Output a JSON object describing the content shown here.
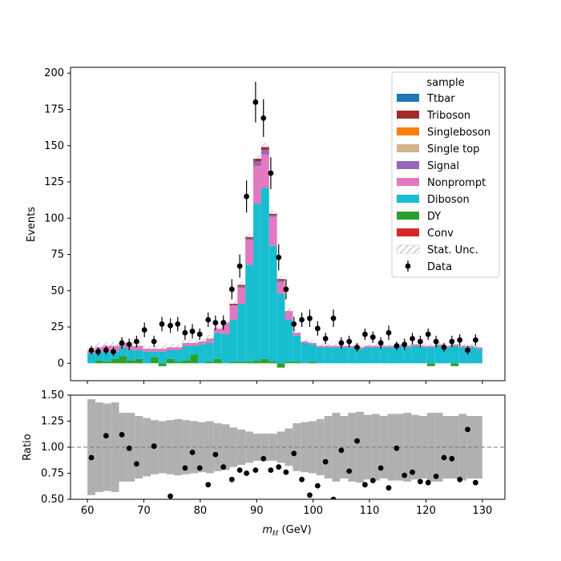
{
  "chart_data": [
    {
      "type": "bar",
      "stacked": true,
      "xlabel": "",
      "ylabel": "Events",
      "xlim": [
        57,
        134
      ],
      "ylim": [
        -12,
        204
      ],
      "yticks": [
        0,
        25,
        50,
        75,
        100,
        125,
        150,
        175,
        200
      ],
      "grid": false,
      "legend": {
        "title": "sample",
        "position": "top-right",
        "stat_label": "Stat. Unc.",
        "data_label": "Data"
      },
      "bin_low": 60,
      "bin_width": 1.4,
      "series": [
        {
          "name": "Conv",
          "color": "#d62728",
          "values": [
            0,
            0,
            0,
            0,
            0,
            0,
            0,
            0,
            0,
            0,
            0,
            0,
            0,
            0,
            0,
            0,
            0,
            0,
            0,
            0,
            0,
            0,
            0,
            0,
            0,
            0,
            0,
            0,
            0,
            0,
            0,
            0,
            0,
            0,
            0,
            0,
            0,
            0,
            0,
            0,
            0,
            0,
            0,
            0,
            0,
            0,
            0,
            0,
            0,
            0
          ]
        },
        {
          "name": "DY",
          "color": "#2ca02c",
          "values": [
            0,
            2,
            1,
            3,
            5,
            2,
            3,
            0,
            4,
            -2,
            3,
            1,
            2,
            6,
            0,
            1,
            3,
            0,
            1,
            1,
            1,
            2,
            3,
            1,
            -3,
            1,
            1,
            0,
            1,
            0,
            0,
            0,
            0,
            0,
            0,
            0,
            0,
            0,
            0,
            0,
            0,
            0,
            0,
            -2,
            0,
            0,
            -2,
            0,
            0,
            0
          ]
        },
        {
          "name": "Diboson",
          "color": "#17becf",
          "values": [
            7,
            6,
            7,
            5,
            6,
            7,
            6,
            8,
            4,
            8,
            6,
            8,
            10,
            6,
            13,
            13,
            18,
            20,
            29,
            40,
            67,
            108,
            118,
            80,
            48,
            29,
            18,
            14,
            12,
            11,
            11,
            11,
            11,
            11,
            10,
            11,
            11,
            11,
            11,
            12,
            11,
            12,
            11,
            11,
            12,
            11,
            12,
            11,
            11,
            10
          ]
        },
        {
          "name": "Nonprompt",
          "color": "#e377c2",
          "values": [
            2,
            3,
            4,
            4,
            3,
            3,
            3,
            2,
            2,
            2,
            2,
            2,
            2,
            2,
            2,
            3,
            3,
            8,
            10,
            11,
            17,
            26,
            23,
            20,
            8,
            6,
            2,
            1,
            1,
            1,
            1,
            1,
            1,
            1,
            1,
            1,
            1,
            1,
            1,
            1,
            1,
            1,
            1,
            1,
            1,
            1,
            1,
            1,
            1,
            1
          ]
        },
        {
          "name": "Signal",
          "color": "#9467bd",
          "values": [
            0,
            0,
            0,
            0,
            0,
            0,
            0,
            0,
            0,
            0,
            0,
            0,
            0,
            0,
            0,
            0,
            0,
            0,
            0,
            1,
            1,
            3,
            3,
            1,
            1,
            0,
            0,
            0,
            0,
            0,
            0,
            0,
            0,
            0,
            0,
            0,
            0,
            0,
            0,
            0,
            0,
            0,
            0,
            0,
            0,
            0,
            0,
            0,
            0,
            0
          ]
        },
        {
          "name": "Single top",
          "color": "#d2b48c",
          "values": [
            0,
            0,
            0,
            0,
            0,
            0,
            0,
            0,
            0,
            0,
            0,
            0,
            0,
            0,
            0,
            0,
            0,
            0,
            0,
            0,
            0,
            0,
            0,
            0,
            0,
            0,
            0,
            0,
            0,
            0,
            0,
            0,
            0,
            0,
            0,
            0,
            0,
            0,
            0,
            0,
            0,
            0,
            0,
            0,
            0,
            0,
            0,
            0,
            0,
            0
          ]
        },
        {
          "name": "Singleboson",
          "color": "#ff7f0e",
          "values": [
            0,
            0,
            0,
            0,
            0,
            0,
            0,
            0,
            0,
            0,
            0,
            0,
            0,
            0,
            0,
            0,
            0,
            0,
            0,
            0,
            0,
            0,
            0,
            0,
            0,
            0,
            0,
            0,
            0,
            0,
            0,
            0,
            0,
            0,
            0,
            0,
            0,
            0,
            0,
            0,
            0,
            0,
            0,
            0,
            0,
            0,
            0,
            0,
            0,
            0
          ]
        },
        {
          "name": "Triboson",
          "color": "#a52a2a",
          "values": [
            0,
            0,
            0,
            0,
            0,
            0,
            0,
            0,
            0,
            0,
            0,
            0,
            0,
            0,
            0,
            0,
            0,
            0,
            1,
            1,
            1,
            2,
            2,
            1,
            1,
            0,
            0,
            0,
            0,
            0,
            0,
            0,
            0,
            0,
            0,
            0,
            0,
            0,
            0,
            0,
            0,
            0,
            0,
            0,
            0,
            0,
            0,
            0,
            0,
            0
          ]
        },
        {
          "name": "Ttbar",
          "color": "#1f77b4",
          "values": [
            0,
            0,
            0,
            0,
            0,
            0,
            0,
            0,
            0,
            0,
            0,
            0,
            0,
            0,
            0,
            0,
            0,
            0,
            0,
            0,
            0,
            0,
            0,
            0,
            0,
            0,
            0,
            0,
            0,
            0,
            0,
            0,
            0,
            0,
            0,
            0,
            0,
            0,
            0,
            0,
            0,
            0,
            0,
            0,
            0,
            0,
            0,
            0,
            0,
            0
          ]
        }
      ],
      "stat_unc": [
        4,
        6,
        5,
        6,
        5,
        5,
        5,
        5,
        4,
        6,
        5,
        4,
        4,
        5,
        3,
        5,
        4,
        4,
        5,
        5,
        5,
        5,
        6,
        5,
        4,
        4,
        3,
        3,
        3,
        3,
        3,
        3,
        3,
        3,
        3,
        3,
        3,
        3,
        3,
        3,
        3,
        3,
        3,
        3,
        3,
        3,
        3,
        3,
        3,
        3
      ],
      "data": {
        "x": [
          60.7,
          61.9,
          63.3,
          64.6,
          66.1,
          67.4,
          68.7,
          70.1,
          71.8,
          73.2,
          74.7,
          76.0,
          77.3,
          78.6,
          79.9,
          81.4,
          82.7,
          84.1,
          85.6,
          87.0,
          88.2,
          89.8,
          91.2,
          92.5,
          93.9,
          95.2,
          96.6,
          98.0,
          99.4,
          100.8,
          102.2,
          103.6,
          105.0,
          106.4,
          107.8,
          109.2,
          110.6,
          112.0,
          113.4,
          114.8,
          116.2,
          117.6,
          119.0,
          120.4,
          121.8,
          123.2,
          124.6,
          126.0,
          127.4,
          128.8
        ],
        "y": [
          9,
          8,
          9,
          8,
          14,
          13,
          15,
          23,
          15,
          27,
          26,
          27,
          21,
          22,
          20,
          30,
          28,
          28,
          51,
          67,
          115,
          180,
          169,
          131,
          73,
          51,
          27,
          30,
          31,
          24,
          17,
          31,
          14,
          15,
          11,
          20,
          18,
          14,
          21,
          12,
          13,
          17,
          15,
          20,
          15,
          11,
          15,
          16,
          9,
          16
        ],
        "err": [
          3,
          3,
          3,
          3,
          4,
          4,
          4,
          5,
          4,
          5,
          5,
          5,
          5,
          5,
          4,
          5,
          5,
          5,
          7,
          8,
          11,
          14,
          13,
          11,
          9,
          7,
          5,
          5,
          6,
          5,
          4,
          6,
          4,
          4,
          3,
          4,
          4,
          4,
          5,
          3,
          4,
          4,
          4,
          4,
          4,
          3,
          4,
          4,
          3,
          4
        ]
      }
    },
    {
      "type": "scatter",
      "xlabel": "m_ll (GeV)",
      "xlabel_main": "m",
      "xlabel_sub": "ℓℓ",
      "xlabel_unit": " (GeV)",
      "ylabel": "Ratio",
      "xlim": [
        57,
        134
      ],
      "ylim": [
        0.5,
        1.5
      ],
      "xticks": [
        60,
        70,
        80,
        90,
        100,
        110,
        120,
        130
      ],
      "yticks": [
        0.5,
        0.75,
        1.0,
        1.25,
        1.5
      ],
      "ytick_labels": [
        "0.50",
        "0.75",
        "1.00",
        "1.25",
        "1.50"
      ],
      "reference_line": 1.0,
      "band_halfwidth": [
        0.46,
        0.43,
        0.42,
        0.43,
        0.33,
        0.33,
        0.3,
        0.28,
        0.26,
        0.25,
        0.26,
        0.27,
        0.26,
        0.25,
        0.24,
        0.25,
        0.23,
        0.22,
        0.19,
        0.17,
        0.15,
        0.13,
        0.13,
        0.13,
        0.15,
        0.18,
        0.23,
        0.24,
        0.25,
        0.27,
        0.3,
        0.33,
        0.3,
        0.33,
        0.34,
        0.31,
        0.32,
        0.3,
        0.32,
        0.32,
        0.33,
        0.31,
        0.3,
        0.33,
        0.33,
        0.3,
        0.3,
        0.32,
        0.3,
        0.3
      ],
      "x": [
        60.7,
        63.3,
        66.1,
        67.4,
        68.7,
        71.8,
        74.7,
        77.3,
        78.6,
        79.9,
        81.4,
        82.7,
        84.1,
        85.6,
        87.0,
        88.2,
        89.8,
        91.2,
        92.5,
        93.9,
        95.2,
        96.6,
        98.0,
        99.4,
        100.8,
        102.2,
        103.6,
        105.0,
        106.4,
        107.8,
        109.2,
        110.6,
        112.0,
        113.4,
        114.8,
        116.2,
        117.6,
        119.0,
        120.4,
        121.8,
        123.2,
        124.6,
        126.0,
        127.4,
        128.8
      ],
      "y": [
        0.9,
        1.11,
        1.12,
        0.99,
        0.84,
        1.01,
        0.53,
        0.8,
        0.95,
        0.8,
        0.64,
        0.93,
        0.81,
        0.69,
        0.78,
        0.75,
        0.78,
        0.89,
        0.78,
        0.81,
        0.76,
        0.94,
        0.69,
        0.54,
        0.63,
        0.86,
        0.5,
        0.97,
        0.77,
        1.06,
        0.64,
        0.68,
        0.8,
        0.61,
        0.99,
        0.73,
        0.76,
        0.67,
        0.66,
        0.72,
        0.9,
        0.89,
        0.69,
        1.17,
        0.66
      ]
    }
  ]
}
